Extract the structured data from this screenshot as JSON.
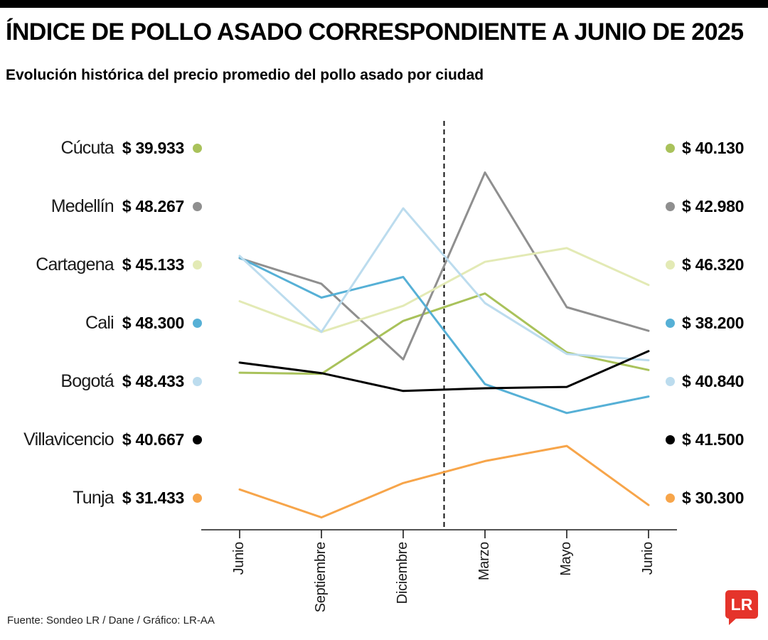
{
  "footer": {
    "source": "Fuente: Sondeo LR / Dane / Gráfico: LR-AA",
    "logo_text": "LR",
    "logo_color": "#e5342b"
  },
  "chart_data": {
    "type": "line",
    "title": "ÍNDICE DE POLLO ASADO CORRESPONDIENTE A JUNIO DE 2025",
    "subtitle": "Evolución histórica del precio promedio del pollo asado por ciudad",
    "x_tick_labels": [
      "Junio",
      "Septiembre",
      "Diciembre",
      "Marzo",
      "Mayo",
      "Junio"
    ],
    "ylim": [
      28500,
      58000
    ],
    "grid": false,
    "year_divider_between": [
      "Diciembre",
      "Marzo"
    ],
    "legend_position": "both-sides",
    "series": [
      {
        "name": "Cúcuta",
        "color": "#a9c25b",
        "start_label": "$ 39.933",
        "end_label": "$ 40.130",
        "values": [
          39933,
          39850,
          43700,
          45700,
          41400,
          40130
        ]
      },
      {
        "name": "Medellín",
        "color": "#8f8f8f",
        "start_label": "$ 48.267",
        "end_label": "$ 42.980",
        "values": [
          48267,
          46400,
          40900,
          54500,
          44700,
          42980
        ]
      },
      {
        "name": "Cartagena",
        "color": "#e3eab5",
        "start_label": "$ 45.133",
        "end_label": "$ 46.320",
        "values": [
          45133,
          42900,
          44800,
          48000,
          49000,
          46320
        ]
      },
      {
        "name": "Cali",
        "color": "#56b0d6",
        "start_label": "$ 48.300",
        "end_label": "$ 38.200",
        "values": [
          48300,
          45400,
          46900,
          39100,
          37000,
          38200
        ]
      },
      {
        "name": "Bogotá",
        "color": "#bcdcee",
        "start_label": "$ 48.433",
        "end_label": "$ 40.840",
        "values": [
          48433,
          42900,
          51900,
          45000,
          41300,
          40840
        ]
      },
      {
        "name": "Villavicencio",
        "color": "#000000",
        "start_label": "$ 40.667",
        "end_label": "$ 41.500",
        "values": [
          40667,
          39900,
          38600,
          38800,
          38900,
          41500
        ]
      },
      {
        "name": "Tunja",
        "color": "#f7a54a",
        "start_label": "$ 31.433",
        "end_label": "$ 30.300",
        "values": [
          31433,
          29400,
          31900,
          33500,
          34600,
          30300
        ]
      }
    ]
  }
}
